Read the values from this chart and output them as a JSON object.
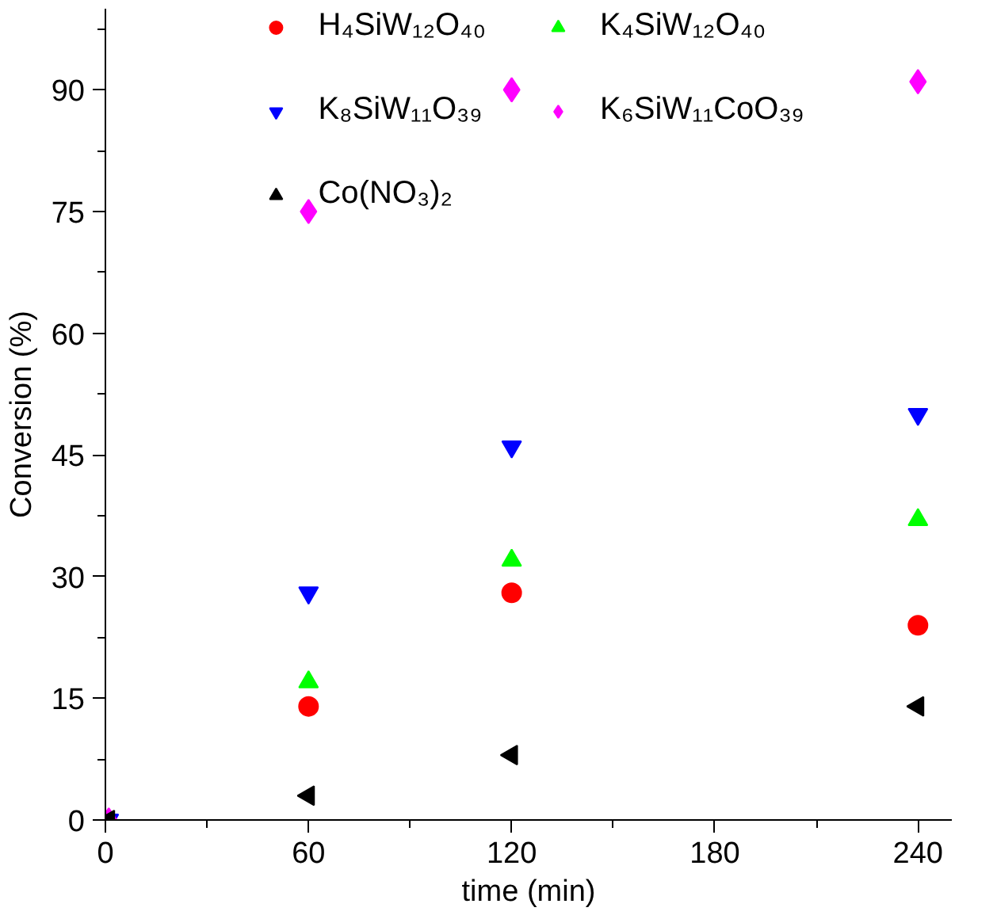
{
  "chart_data": {
    "type": "scatter",
    "xlabel": "time (min)",
    "ylabel": "Conversion (%)",
    "x": [
      1,
      60,
      120,
      240
    ],
    "series": [
      {
        "name": "H₄SiW₁₂O₄₀",
        "color": "#ff0000",
        "marker": "circle",
        "values": [
          null,
          14,
          28,
          24
        ]
      },
      {
        "name": "K₄SiW₁₂O₄₀",
        "color": "#00ff00",
        "marker": "triangle",
        "values": [
          null,
          17,
          32,
          37
        ]
      },
      {
        "name": "K₈SiW₁₁O₃₉",
        "color": "#0000ff",
        "marker": "triangle_down",
        "values": [
          0,
          28,
          46,
          50
        ]
      },
      {
        "name": "K₆SiW₁₁CoO₃₉",
        "color": "#ff00ff",
        "marker": "diamond",
        "values": [
          0,
          75,
          90,
          91
        ]
      },
      {
        "name": "Co(NO₃)₂",
        "color": "#000000",
        "marker": "triangle_left",
        "values": [
          0,
          3,
          8,
          14
        ]
      }
    ],
    "xlim": [
      0,
      250
    ],
    "ylim": [
      0,
      100
    ],
    "xticks": [
      0,
      60,
      120,
      180,
      240
    ],
    "yticks": [
      0,
      15,
      30,
      45,
      60,
      75,
      90
    ],
    "grid": false,
    "legend": "top"
  }
}
